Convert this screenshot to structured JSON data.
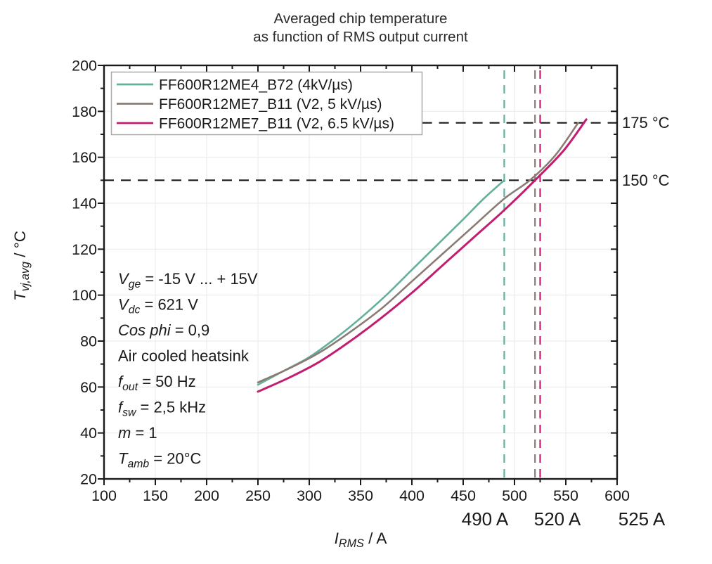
{
  "title": {
    "line1": "Averaged chip temperature",
    "line2": "as function of RMS output current"
  },
  "chart_data": {
    "type": "line",
    "title": "Averaged chip temperature as function of RMS output current",
    "xlabel": "I_RMS / A",
    "ylabel": "T_vj,avg / °C",
    "xlabel_segments": [
      {
        "t": "I",
        "f": "i"
      },
      {
        "t": "RMS",
        "f": "s"
      },
      {
        "t": " / A",
        "f": "n"
      }
    ],
    "ylabel_segments": [
      {
        "t": "T",
        "f": "i"
      },
      {
        "t": "vj,avg",
        "f": "s"
      },
      {
        "t": " / °C",
        "f": "n"
      }
    ],
    "xlim": [
      100,
      600
    ],
    "ylim": [
      20,
      200
    ],
    "x_major_ticks": [
      100,
      150,
      200,
      250,
      300,
      350,
      400,
      450,
      500,
      550,
      600
    ],
    "y_major_ticks": [
      20,
      40,
      60,
      80,
      100,
      120,
      140,
      160,
      180,
      200
    ],
    "x_minor_step": 25,
    "y_minor_step": 10,
    "grid": true,
    "legend_position": "top-left",
    "series": [
      {
        "name": "FF600R12ME4_B72 (4kV/µs)",
        "color": "#63b09c",
        "width": 2.6,
        "points": [
          [
            250,
            61
          ],
          [
            275,
            67
          ],
          [
            300,
            73
          ],
          [
            325,
            81
          ],
          [
            350,
            90
          ],
          [
            375,
            100
          ],
          [
            400,
            111
          ],
          [
            425,
            122
          ],
          [
            450,
            133
          ],
          [
            470,
            142
          ],
          [
            490,
            150
          ]
        ]
      },
      {
        "name": "FF600R12ME7_B11 (V2, 5 kV/µs)",
        "color": "#8a7b75",
        "width": 2.6,
        "points": [
          [
            250,
            62
          ],
          [
            280,
            68
          ],
          [
            310,
            75
          ],
          [
            340,
            84
          ],
          [
            370,
            94
          ],
          [
            400,
            106
          ],
          [
            430,
            118
          ],
          [
            460,
            130
          ],
          [
            490,
            142
          ],
          [
            515,
            150
          ],
          [
            540,
            161
          ],
          [
            562,
            175
          ]
        ]
      },
      {
        "name": "FF600R12ME7_B11 (V2, 6.5 kV/µs)",
        "color": "#c21d70",
        "width": 3,
        "points": [
          [
            250,
            58
          ],
          [
            280,
            64
          ],
          [
            310,
            71
          ],
          [
            340,
            80
          ],
          [
            370,
            90
          ],
          [
            400,
            101
          ],
          [
            430,
            113
          ],
          [
            460,
            125
          ],
          [
            490,
            137
          ],
          [
            520,
            150
          ],
          [
            548,
            163
          ],
          [
            570,
            176.5
          ]
        ]
      }
    ],
    "reference_lines": {
      "horizontal": [
        {
          "value": 175,
          "label": "175 °C",
          "color": "#1a1a1a",
          "x_start": 410
        },
        {
          "value": 150,
          "label": "150 °C",
          "color": "#1a1a1a",
          "x_start": 100
        }
      ],
      "vertical": [
        {
          "value": 490,
          "label": "490 A",
          "color": "#63b09c",
          "label_color": "#5eb8a0"
        },
        {
          "value": 520,
          "label": "520 A",
          "color": "#8a7b75",
          "label_color": "#9e948e"
        },
        {
          "value": 525,
          "label": "525 A",
          "color": "#c21d70",
          "label_color": "#c5307a"
        }
      ]
    },
    "annotations": [
      {
        "segments": [
          {
            "t": "V",
            "f": "i"
          },
          {
            "t": "ge",
            "f": "s"
          },
          {
            "t": " = -15 V ... + 15V",
            "f": "n"
          }
        ]
      },
      {
        "segments": [
          {
            "t": "V",
            "f": "i"
          },
          {
            "t": "dc",
            "f": "s"
          },
          {
            "t": " = 621 V",
            "f": "n"
          }
        ]
      },
      {
        "segments": [
          {
            "t": "Cos phi",
            "f": "i"
          },
          {
            "t": " = 0,9",
            "f": "n"
          }
        ]
      },
      {
        "segments": [
          {
            "t": "Air cooled heatsink",
            "f": "n"
          }
        ]
      },
      {
        "segments": [
          {
            "t": "f",
            "f": "i"
          },
          {
            "t": "out",
            "f": "s"
          },
          {
            "t": " = 50 Hz",
            "f": "n"
          }
        ]
      },
      {
        "segments": [
          {
            "t": "f",
            "f": "i"
          },
          {
            "t": "sw",
            "f": "s"
          },
          {
            "t": " = 2,5 kHz",
            "f": "n"
          }
        ]
      },
      {
        "segments": [
          {
            "t": "m",
            "f": "i"
          },
          {
            "t": " = 1",
            "f": "n"
          }
        ]
      },
      {
        "segments": [
          {
            "t": "T",
            "f": "i"
          },
          {
            "t": "amb",
            "f": "s"
          },
          {
            "t": " = 20°C",
            "f": "n"
          }
        ]
      }
    ]
  },
  "colors": {
    "axis": "#1a1a1a",
    "grid": "#ececec",
    "legend_border": "#a9a9a9",
    "background": "#ffffff"
  }
}
